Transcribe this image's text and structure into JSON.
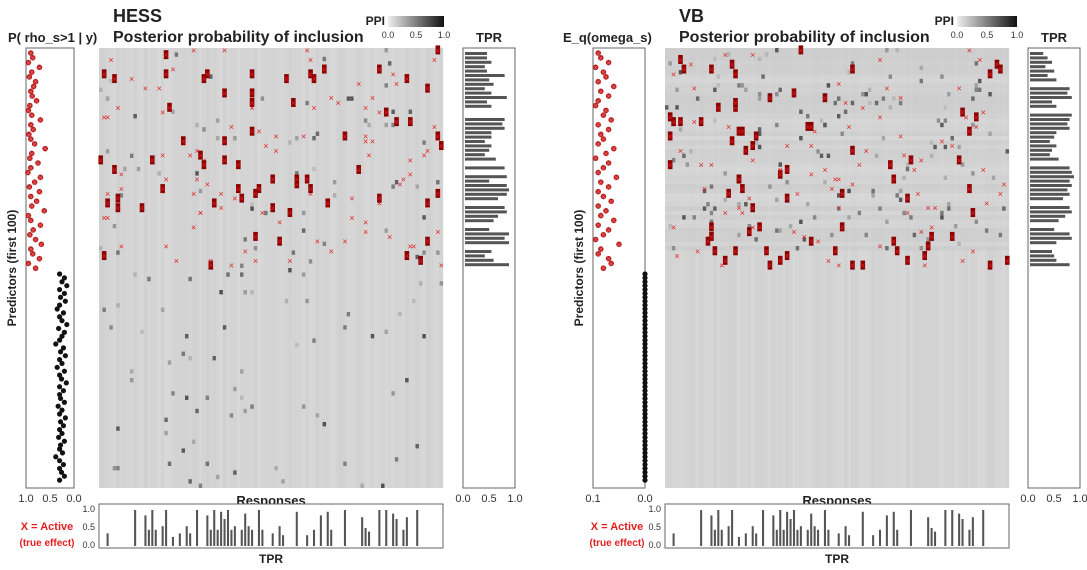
{
  "chart_data": [
    {
      "type": "heatmap",
      "method": "HESS",
      "title": "HESS",
      "subtitle": "Posterior probability of inclusion",
      "colorbar_label": "PPI",
      "colorbar_ticks": [
        "0.0",
        "0.5",
        "1.0"
      ],
      "colorbar_range": [
        0,
        1
      ],
      "side_plot": {
        "label": "P( rho_s>1 | y)",
        "ticks": [
          "1.0",
          "0.5",
          "0.0"
        ],
        "range": [
          1.0,
          0.0
        ],
        "active_values": [
          0.9,
          0.86,
          0.95,
          0.72,
          0.88,
          0.93,
          0.8,
          0.84,
          0.9,
          0.87,
          0.78,
          0.92,
          0.95,
          0.88,
          0.7,
          0.9,
          0.85,
          0.94,
          0.9,
          0.82,
          0.6,
          0.88,
          0.92,
          0.75,
          0.9,
          0.96,
          0.7,
          0.82,
          0.93,
          0.72,
          0.9,
          0.78,
          0.88,
          0.62,
          0.95,
          0.9,
          0.7,
          0.85,
          0.92,
          0.8,
          0.68,
          0.9,
          0.86,
          0.72,
          0.95,
          0.8
        ],
        "null_values": [
          0.3,
          0.2,
          0.25,
          0.15,
          0.3,
          0.2,
          0.28,
          0.18,
          0.3,
          0.35,
          0.22,
          0.3,
          0.25,
          0.15,
          0.32,
          0.2,
          0.25,
          0.3,
          0.38,
          0.22,
          0.28,
          0.18,
          0.3,
          0.25,
          0.35,
          0.2,
          0.3,
          0.26,
          0.16,
          0.3,
          0.22,
          0.3,
          0.28,
          0.2,
          0.33,
          0.25,
          0.3,
          0.18,
          0.28,
          0.22,
          0.3,
          0.25,
          0.32,
          0.2,
          0.28,
          0.3,
          0.24,
          0.38,
          0.3,
          0.22,
          0.3,
          0.26,
          0.2,
          0.3
        ]
      },
      "y_axis_label": "Predictors (first 100)",
      "x_axis_label": "Responses",
      "bottom_plot": {
        "label": "TPR",
        "ticks": [
          "1.0",
          "0.5",
          "0.0"
        ],
        "range": [
          0,
          1
        ],
        "values": [
          0,
          0,
          0.35,
          0,
          0,
          0,
          0,
          0,
          0,
          0,
          1,
          0,
          0,
          0.85,
          0.45,
          1,
          0.45,
          0,
          0.55,
          1,
          0,
          0.25,
          0,
          0.35,
          0,
          0.55,
          0.35,
          0,
          1,
          0,
          0,
          0.85,
          0.45,
          1,
          0.45,
          0.95,
          0.75,
          1,
          0.45,
          0.55,
          0,
          0.45,
          0.9,
          0.55,
          0.45,
          0,
          1,
          0.45,
          0,
          0,
          0.35,
          0,
          0.55,
          0.3,
          0,
          0,
          0,
          0.95,
          0,
          0,
          0.3,
          0,
          0.45,
          0,
          0.85,
          0,
          0.95,
          0.45,
          0,
          0,
          0,
          1,
          0,
          0,
          0,
          0,
          0.8,
          0.5,
          0.4,
          0,
          0,
          1,
          0,
          1,
          0,
          0.9,
          0.75,
          0,
          0.45,
          0.8,
          0,
          0,
          1,
          0,
          0,
          0,
          0,
          0,
          0,
          0
        ]
      },
      "right_plot": {
        "label": "TPR",
        "ticks": [
          "0.0",
          "0.5",
          "1.0"
        ],
        "range": [
          0,
          1
        ],
        "values": [
          0.5,
          0.5,
          0.6,
          0.45,
          0.5,
          0.9,
          0.55,
          0.65,
          0.45,
          0.6,
          0.95,
          0.5,
          0.6,
          0,
          0,
          0.9,
          0.85,
          0.9,
          0.6,
          0.6,
          0.45,
          0.6,
          0.55,
          0.45,
          0.7,
          0,
          0.9,
          0,
          0.95,
          0.55,
          0.95,
          1,
          0.95,
          0.75,
          0,
          0.9,
          0.95,
          0.75,
          0.65,
          0,
          0.55,
          1,
          0.9,
          1,
          0,
          0.6,
          0.45,
          0.65,
          1,
          0
        ]
      },
      "legend_note_line1": "X = Active",
      "legend_note_line2": "(true effect)",
      "rows_total": 100,
      "cols_total": 100,
      "active_rows_count": 46
    },
    {
      "type": "heatmap",
      "method": "VB",
      "title": "VB",
      "subtitle": "Posterior probability of inclusion",
      "colorbar_label": "PPI",
      "colorbar_ticks": [
        "0.0",
        "0.5",
        "1.0"
      ],
      "colorbar_range": [
        0,
        1
      ],
      "side_plot": {
        "label": "E_q(omega_s)",
        "ticks": [
          "0.1",
          "0.0"
        ],
        "range": [
          0.1,
          0.0
        ],
        "active_values": [
          0.09,
          0.085,
          0.07,
          0.095,
          0.08,
          0.075,
          0.09,
          0.06,
          0.085,
          0.07,
          0.09,
          0.095,
          0.075,
          0.08,
          0.065,
          0.09,
          0.07,
          0.085,
          0.08,
          0.09,
          0.06,
          0.075,
          0.095,
          0.07,
          0.08,
          0.09,
          0.055,
          0.085,
          0.07,
          0.09,
          0.08,
          0.065,
          0.09,
          0.075,
          0.085,
          0.06,
          0.09,
          0.07,
          0.08,
          0.095,
          0.05,
          0.085,
          0.09,
          0.07,
          0.065,
          0.08
        ],
        "null_value": 0.0,
        "null_count": 54
      },
      "y_axis_label": "Predictors (first 100)",
      "x_axis_label": "Responses",
      "bottom_plot": {
        "label": "TPR",
        "ticks": [
          "1.0",
          "0.5",
          "0.0"
        ],
        "range": [
          0,
          1
        ],
        "values": [
          0,
          0,
          0.35,
          0,
          0,
          0,
          0,
          0,
          0,
          0,
          1,
          0,
          0,
          0.85,
          0.45,
          1,
          0.45,
          0,
          0.55,
          1,
          0,
          0.25,
          0,
          0.35,
          0,
          0.55,
          0.35,
          0,
          1,
          0,
          0,
          0.85,
          0.45,
          1,
          0.45,
          0.95,
          0.75,
          1,
          0.45,
          0.55,
          0,
          0.45,
          0.9,
          0.55,
          0.45,
          0,
          1,
          0.45,
          0,
          0,
          0.35,
          0,
          0.55,
          0.3,
          0,
          0,
          0,
          0.95,
          0,
          0,
          0.3,
          0,
          0.45,
          0,
          0.85,
          0,
          0.95,
          0.45,
          0,
          0,
          0,
          1,
          0,
          0,
          0,
          0,
          0.8,
          0.5,
          0.4,
          0,
          0,
          1,
          0,
          1,
          0,
          0.9,
          0.75,
          0,
          0.45,
          0.8,
          0,
          0,
          1,
          0,
          0,
          0,
          0,
          0,
          0,
          0
        ]
      },
      "right_plot": {
        "label": "TPR",
        "ticks": [
          "0.0",
          "0.5",
          "1.0"
        ],
        "range": [
          0,
          1
        ],
        "values": [
          0.3,
          0.4,
          0.5,
          0.35,
          0.55,
          0.4,
          0.6,
          0,
          0.9,
          0.85,
          0.95,
          0.5,
          0.6,
          0,
          0.95,
          0.9,
          0.85,
          0.9,
          0.6,
          0.55,
          0.45,
          0.6,
          0.5,
          0.45,
          0.65,
          0,
          0.9,
          0.95,
          1,
          0.9,
          0.95,
          0.85,
          0.9,
          0.75,
          0,
          0.9,
          0.95,
          0.8,
          0.65,
          0,
          0.55,
          0.9,
          0.95,
          0.6,
          0,
          0.5,
          0.55,
          0.6,
          0.9,
          0
        ]
      },
      "legend_note_line1": "X = Active",
      "legend_note_line2": "(true effect)",
      "rows_total": 100,
      "cols_total": 100,
      "active_rows_count": 46
    }
  ]
}
